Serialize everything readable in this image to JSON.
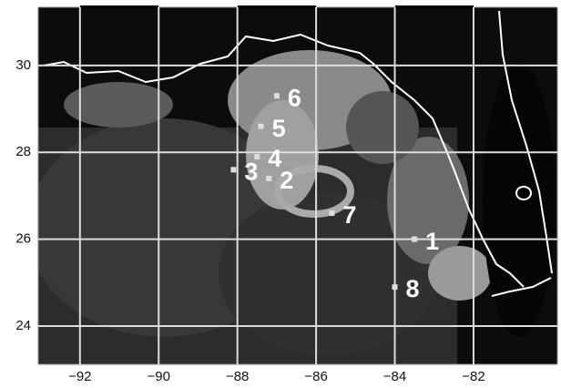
{
  "chart_data": {
    "type": "map",
    "xlim": [
      -93.06,
      -79.87
    ],
    "ylim": [
      23.12,
      31.34
    ],
    "xticks": [
      {
        "value": -92,
        "label": "−92"
      },
      {
        "value": -90,
        "label": "−90"
      },
      {
        "value": -88,
        "label": "−88"
      },
      {
        "value": -86,
        "label": "−86"
      },
      {
        "value": -84,
        "label": "−84"
      },
      {
        "value": -82,
        "label": "−82"
      }
    ],
    "yticks": [
      24,
      26,
      28,
      30
    ],
    "grid": true,
    "stations": [
      {
        "label": "1",
        "lon": -83.5,
        "lat": 26.0
      },
      {
        "label": "2",
        "lon": -87.2,
        "lat": 27.4
      },
      {
        "label": "3",
        "lon": -88.1,
        "lat": 27.6
      },
      {
        "label": "4",
        "lon": -87.5,
        "lat": 27.9
      },
      {
        "label": "5",
        "lon": -87.4,
        "lat": 28.6
      },
      {
        "label": "6",
        "lon": -87.0,
        "lat": 29.3
      },
      {
        "label": "7",
        "lon": -85.6,
        "lat": 26.6
      },
      {
        "label": "8",
        "lon": -84.0,
        "lat": 24.9
      }
    ]
  }
}
